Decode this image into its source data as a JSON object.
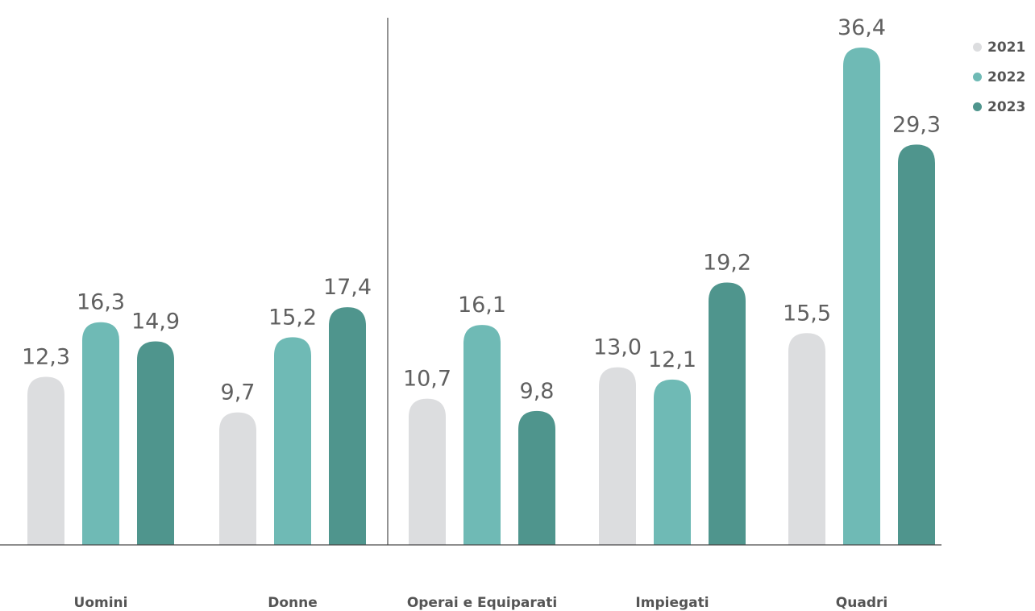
{
  "chart_data": {
    "type": "bar",
    "title": "",
    "xlabel": "",
    "ylabel": "",
    "ylim": [
      0,
      37
    ],
    "categories": [
      "Uomini",
      "Donne",
      "Operai e Equiparati",
      "Impiegati",
      "Quadri"
    ],
    "series": [
      {
        "name": "2021",
        "color": "#dcdddf",
        "values": [
          12.3,
          9.7,
          10.7,
          13.0,
          15.5
        ],
        "labels": [
          "12,3",
          "9,7",
          "10,7",
          "13,0",
          "15,5"
        ]
      },
      {
        "name": "2022",
        "color": "#6fbab5",
        "values": [
          16.3,
          15.2,
          16.1,
          12.1,
          36.4
        ],
        "labels": [
          "16,3",
          "15,2",
          "16,1",
          "12,1",
          "36,4"
        ]
      },
      {
        "name": "2023",
        "color": "#4f958d",
        "values": [
          14.9,
          17.4,
          9.8,
          19.2,
          29.3
        ],
        "labels": [
          "14,9",
          "17,4",
          "9,8",
          "19,2",
          "29,3"
        ]
      }
    ],
    "legend_position": "top-right",
    "grid": false
  }
}
